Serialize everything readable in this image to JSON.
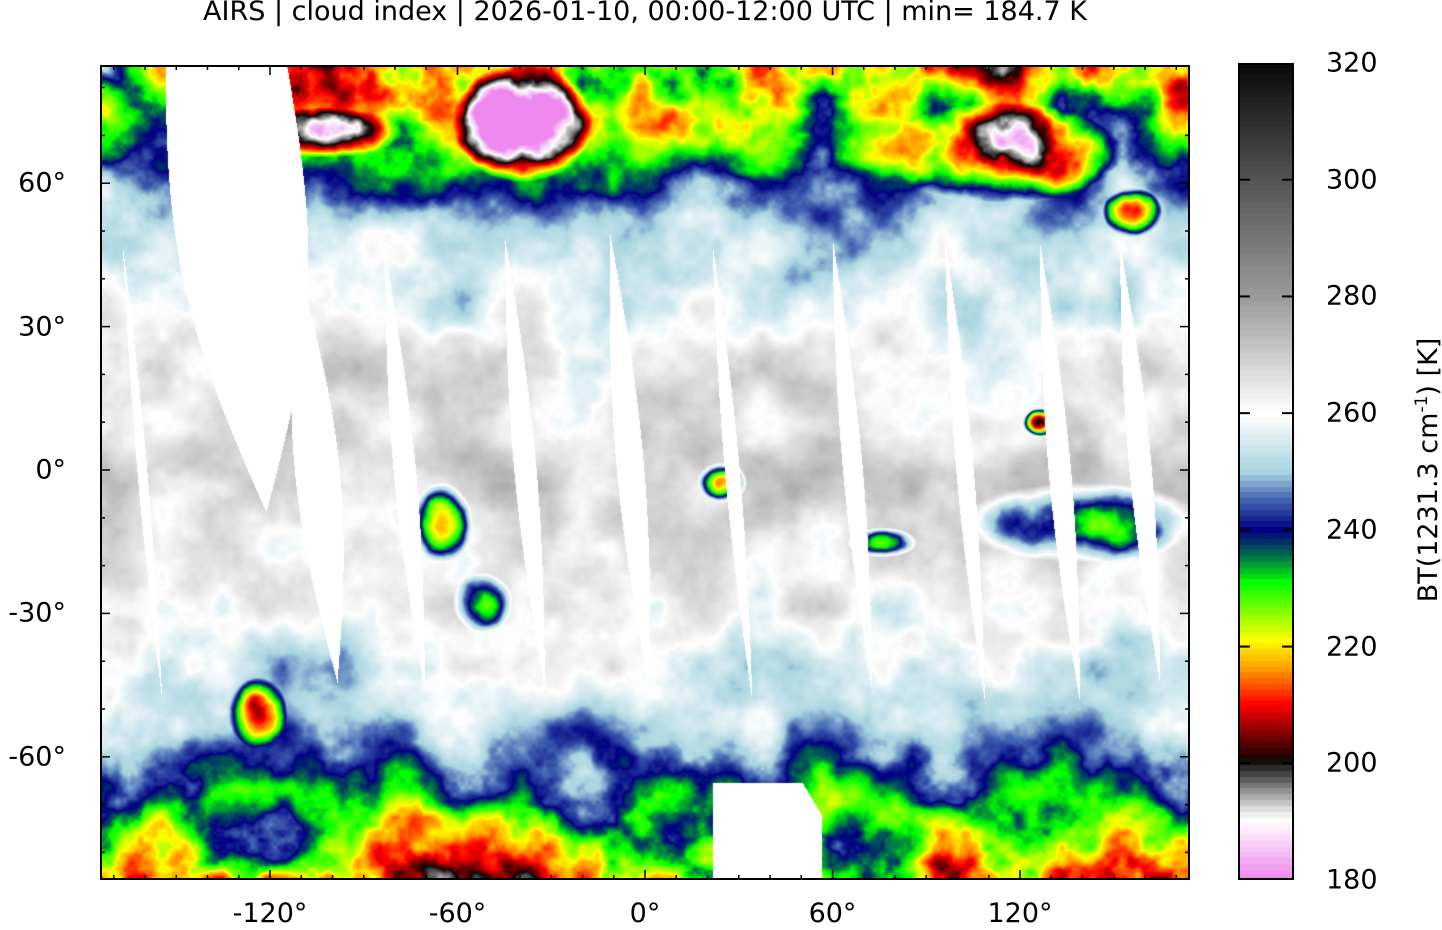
{
  "title": "AIRS | cloud index | 2026-01-10, 00:00-12:00 UTC | min= 184.7 K",
  "map": {
    "projection": "equirectangular",
    "lon_range": [
      -174,
      174
    ],
    "lat_range": [
      -86,
      85
    ],
    "x_ticks": [
      {
        "value": -120,
        "label": "-120°"
      },
      {
        "value": -60,
        "label": "-60°"
      },
      {
        "value": 0,
        "label": "0°"
      },
      {
        "value": 60,
        "label": "60°"
      },
      {
        "value": 120,
        "label": "120°"
      }
    ],
    "y_ticks": [
      {
        "value": 60,
        "label": "60°"
      },
      {
        "value": 30,
        "label": "30°"
      },
      {
        "value": 0,
        "label": "0°"
      },
      {
        "value": -30,
        "label": "-30°"
      },
      {
        "value": -60,
        "label": "-60°"
      }
    ],
    "coastlines_color": "#c8c8c8",
    "no_data_color": "#ffffff"
  },
  "colorbar": {
    "label_main": "BT(1231.3 cm",
    "label_sup": "-1",
    "label_end": ") [K]",
    "range": [
      180,
      320
    ],
    "ticks": [
      {
        "value": 320,
        "label": "320"
      },
      {
        "value": 300,
        "label": "300"
      },
      {
        "value": 280,
        "label": "280"
      },
      {
        "value": 260,
        "label": "260"
      },
      {
        "value": 240,
        "label": "240"
      },
      {
        "value": 220,
        "label": "220"
      },
      {
        "value": 200,
        "label": "200"
      },
      {
        "value": 180,
        "label": "180"
      }
    ],
    "stops": [
      {
        "value": 320,
        "color": "#0a0a0a"
      },
      {
        "value": 300,
        "color": "#555555"
      },
      {
        "value": 280,
        "color": "#9a9a9a"
      },
      {
        "value": 260,
        "color": "#ffffff"
      },
      {
        "value": 250,
        "color": "#a8d4e0"
      },
      {
        "value": 245,
        "color": "#4060b0"
      },
      {
        "value": 240,
        "color": "#000080"
      },
      {
        "value": 236,
        "color": "#006050"
      },
      {
        "value": 231,
        "color": "#00ff00"
      },
      {
        "value": 221,
        "color": "#ffff00"
      },
      {
        "value": 216,
        "color": "#ff9900"
      },
      {
        "value": 210,
        "color": "#ff0000"
      },
      {
        "value": 201,
        "color": "#200000"
      },
      {
        "value": 200,
        "color": "#111111"
      },
      {
        "value": 192,
        "color": "#dddddd"
      },
      {
        "value": 190,
        "color": "#ffffff"
      },
      {
        "value": 180,
        "color": "#ee88ee"
      }
    ]
  }
}
